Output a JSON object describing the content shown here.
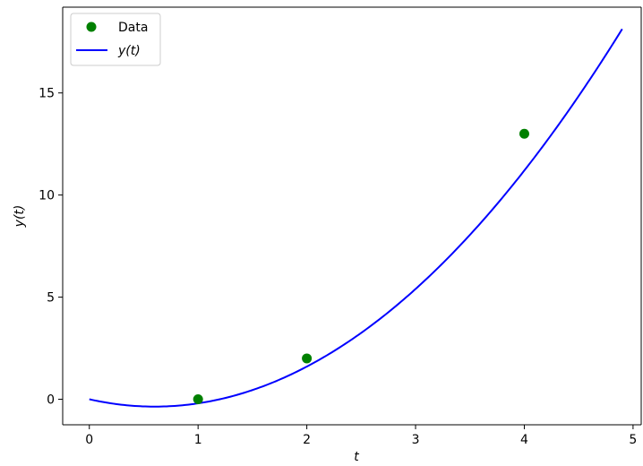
{
  "chart_data": {
    "type": "line",
    "title": "",
    "xlabel": "t",
    "ylabel": "y(t)",
    "xlim": [
      -0.245,
      5.075
    ],
    "ylim": [
      -1.25,
      19.2
    ],
    "xticks": [
      0,
      1,
      2,
      3,
      4,
      5
    ],
    "yticks": [
      0,
      5,
      10,
      15
    ],
    "grid": false,
    "legend_position": "top-left",
    "series": [
      {
        "name": "Data",
        "kind": "scatter",
        "color": "#008000",
        "points": [
          [
            1,
            0
          ],
          [
            2,
            2
          ],
          [
            4,
            13
          ]
        ]
      },
      {
        "name": "y(t)",
        "kind": "line",
        "color": "#0000ff",
        "coefficients": [
          1,
          -1.2,
          0
        ],
        "t_range": [
          0,
          4.9
        ]
      }
    ]
  }
}
